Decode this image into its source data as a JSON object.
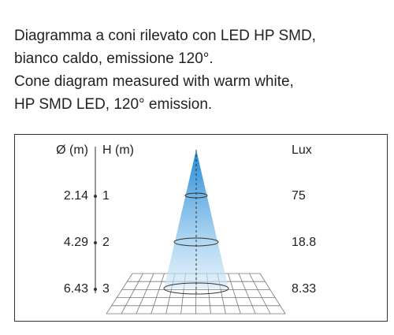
{
  "caption": [
    "Diagramma a coni rilevato con LED HP SMD,",
    "bianco caldo, emissione 120°.",
    "Cone diagram measured with warm white,",
    "HP SMD LED, 120° emission."
  ],
  "table": {
    "headers": {
      "diameter": "Ø (m)",
      "height": "H (m)",
      "lux": "Lux"
    },
    "rows": [
      {
        "diameter": "2.14",
        "height": "1",
        "lux": "75"
      },
      {
        "diameter": "4.29",
        "height": "2",
        "lux": "18.8"
      },
      {
        "diameter": "6.43",
        "height": "3",
        "lux": "8.33"
      }
    ]
  }
}
